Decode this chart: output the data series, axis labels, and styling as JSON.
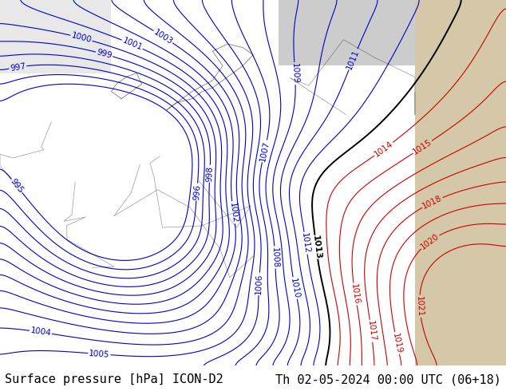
{
  "title_left": "Surface pressure [hPa] ICON-D2",
  "title_right": "Th 02-05-2024 00:00 UTC (06+18)",
  "title_fontsize": 11,
  "title_color": "#000000",
  "background_color": "#ffffff",
  "map_bg_color": "#c8e6a0",
  "sea_color": "#d0e8f0",
  "land_outside_color": "#d4c8a8",
  "fig_width": 6.34,
  "fig_height": 4.9,
  "dpi": 100,
  "bottom_bar_height": 0.065,
  "bottom_bar_color": "#c8f0c8",
  "bottom_text_color": "#000000",
  "contour_blue_color": "#0000cc",
  "contour_red_color": "#cc0000",
  "contour_black_color": "#000000",
  "contour_linewidth": 0.8,
  "label_fontsize": 7.5
}
